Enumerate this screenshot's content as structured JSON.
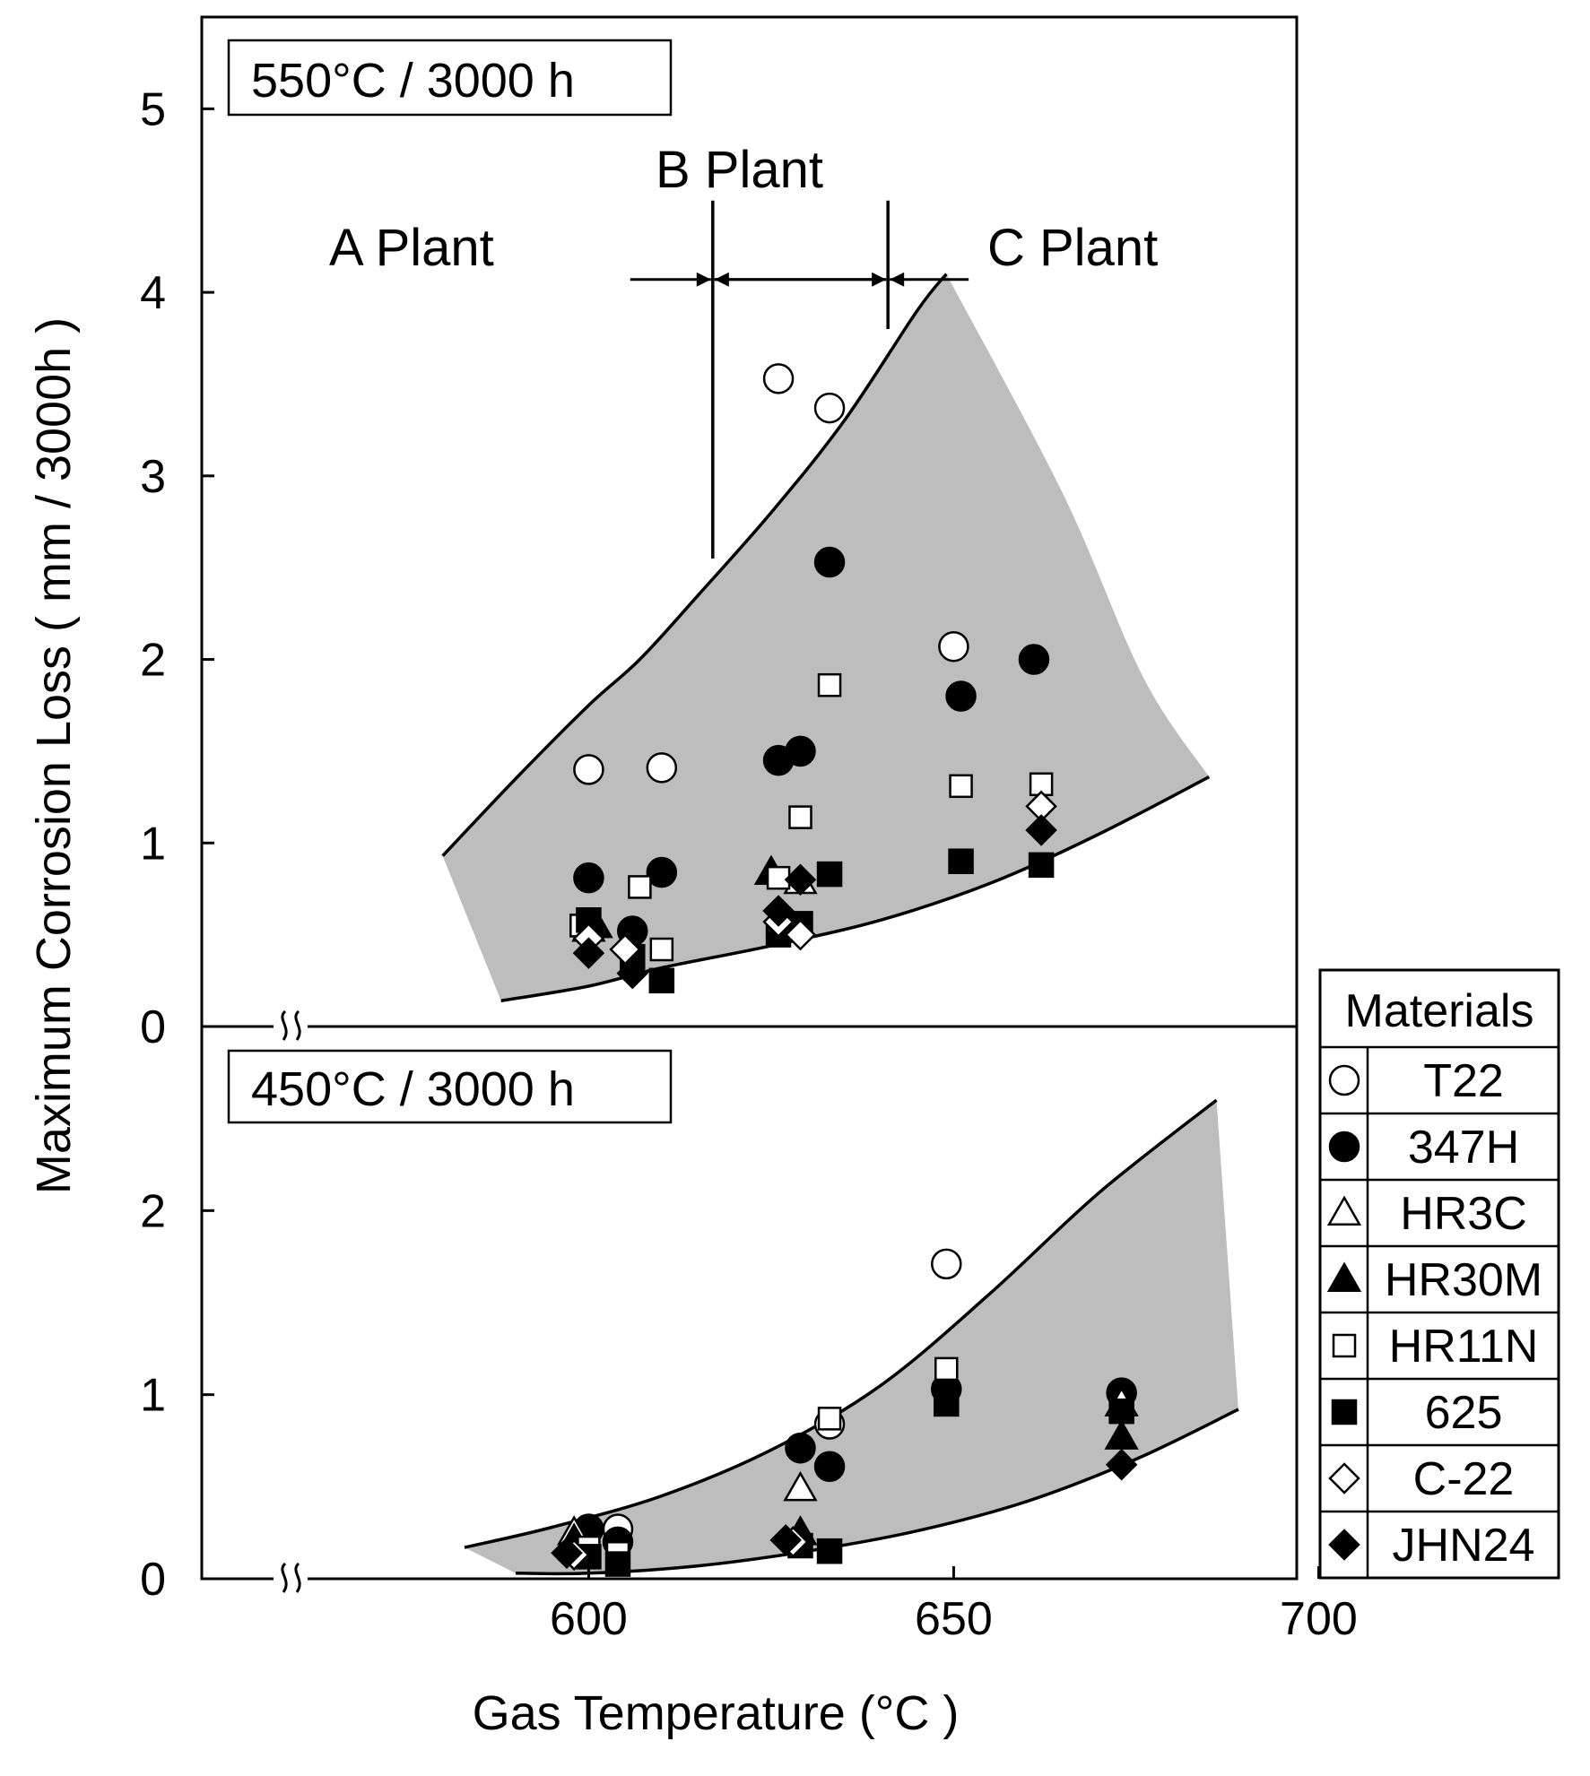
{
  "chart_data": [
    {
      "panel": "upper",
      "type": "scatter",
      "title": "550°C / 3000 h",
      "xlabel": "Gas Temperature (°C )",
      "ylabel": "Maximum Corrosion Loss ( mm / 3000h )",
      "xlim": [
        547,
        697
      ],
      "ylim": [
        0,
        5.5
      ],
      "yticks": [
        0,
        1,
        2,
        3,
        4,
        5
      ],
      "plants": [
        {
          "label": "A Plant"
        },
        {
          "label": "B Plant"
        },
        {
          "label": "C Plant"
        }
      ],
      "plant_boundaries": [
        617,
        641
      ],
      "band": {
        "upper": [
          [
            580,
            0.93
          ],
          [
            590,
            1.35
          ],
          [
            600,
            1.75
          ],
          [
            607,
            2.0
          ],
          [
            615,
            2.35
          ],
          [
            625,
            2.8
          ],
          [
            635,
            3.3
          ],
          [
            645,
            3.9
          ],
          [
            649,
            4.1
          ]
        ],
        "right": [
          [
            649,
            4.1
          ],
          [
            665,
            2.9
          ],
          [
            676,
            1.9
          ],
          [
            685,
            1.36
          ]
        ],
        "lower": [
          [
            685,
            1.36
          ],
          [
            670,
            1.05
          ],
          [
            655,
            0.78
          ],
          [
            640,
            0.58
          ],
          [
            625,
            0.44
          ],
          [
            610,
            0.32
          ],
          [
            600,
            0.22
          ],
          [
            588,
            0.14
          ]
        ],
        "left": [
          [
            588,
            0.14
          ],
          [
            580,
            0.93
          ]
        ]
      },
      "series": [
        {
          "name": "T22",
          "marker": "open-circle",
          "points": [
            [
              600,
              1.4
            ],
            [
              610,
              1.41
            ],
            [
              626,
              3.53
            ],
            [
              633,
              3.37
            ],
            [
              650,
              2.07
            ]
          ]
        },
        {
          "name": "347H",
          "marker": "filled-circle",
          "points": [
            [
              600,
              0.81
            ],
            [
              606,
              0.52
            ],
            [
              610,
              0.84
            ],
            [
              626,
              1.45
            ],
            [
              629,
              1.5
            ],
            [
              633,
              2.53
            ],
            [
              651,
              1.8
            ],
            [
              661,
              2.0
            ]
          ]
        },
        {
          "name": "HR3C",
          "marker": "open-triangle",
          "points": [
            [
              600,
              0.53
            ],
            [
              629,
              0.79
            ]
          ]
        },
        {
          "name": "HR30M",
          "marker": "filled-triangle",
          "points": [
            [
              601,
              0.55
            ],
            [
              625,
              0.84
            ]
          ]
        },
        {
          "name": "HR11N",
          "marker": "open-square",
          "points": [
            [
              599,
              0.55
            ],
            [
              607,
              0.76
            ],
            [
              610,
              0.42
            ],
            [
              626,
              0.81
            ],
            [
              629,
              1.14
            ],
            [
              633,
              1.86
            ],
            [
              651,
              1.31
            ],
            [
              662,
              1.32
            ]
          ]
        },
        {
          "name": "625",
          "marker": "filled-square",
          "points": [
            [
              600,
              0.58
            ],
            [
              606,
              0.38
            ],
            [
              610,
              0.25
            ],
            [
              626,
              0.5
            ],
            [
              629,
              0.56
            ],
            [
              633,
              0.83
            ],
            [
              651,
              0.9
            ],
            [
              662,
              0.88
            ]
          ]
        },
        {
          "name": "C-22",
          "marker": "open-diamond",
          "points": [
            [
              600,
              0.48
            ],
            [
              605,
              0.42
            ],
            [
              626,
              0.57
            ],
            [
              629,
              0.5
            ],
            [
              662,
              1.2
            ]
          ]
        },
        {
          "name": "JHN24",
          "marker": "filled-diamond",
          "points": [
            [
              600,
              0.4
            ],
            [
              606,
              0.29
            ],
            [
              626,
              0.63
            ],
            [
              629,
              0.8
            ],
            [
              662,
              1.07
            ]
          ]
        }
      ]
    },
    {
      "panel": "lower",
      "type": "scatter",
      "title": "450°C / 3000 h",
      "xlabel": "Gas Temperature (°C )",
      "ylabel": "Maximum Corrosion Loss ( mm / 3000h )",
      "xlim": [
        547,
        697
      ],
      "ylim": [
        0,
        3.0
      ],
      "yticks": [
        0,
        1,
        2
      ],
      "xticks": [
        600,
        650,
        700
      ],
      "band": {
        "upper": [
          [
            583,
            0.17
          ],
          [
            595,
            0.28
          ],
          [
            610,
            0.45
          ],
          [
            625,
            0.7
          ],
          [
            640,
            1.05
          ],
          [
            655,
            1.55
          ],
          [
            670,
            2.1
          ],
          [
            686,
            2.6
          ]
        ],
        "right": [
          [
            686,
            2.6
          ],
          [
            689,
            0.92
          ]
        ],
        "lower": [
          [
            689,
            0.92
          ],
          [
            675,
            0.65
          ],
          [
            660,
            0.42
          ],
          [
            645,
            0.26
          ],
          [
            630,
            0.15
          ],
          [
            615,
            0.07
          ],
          [
            600,
            0.03
          ],
          [
            590,
            0.03
          ]
        ],
        "left": [
          [
            590,
            0.03
          ],
          [
            583,
            0.17
          ]
        ]
      },
      "series": [
        {
          "name": "T22",
          "marker": "open-circle",
          "points": [
            [
              604,
              0.27
            ],
            [
              633,
              0.84
            ],
            [
              649,
              1.71
            ]
          ]
        },
        {
          "name": "347H",
          "marker": "filled-circle",
          "points": [
            [
              600,
              0.27
            ],
            [
              604,
              0.2
            ],
            [
              629,
              0.71
            ],
            [
              633,
              0.61
            ],
            [
              649,
              1.03
            ],
            [
              673,
              1.01
            ]
          ]
        },
        {
          "name": "HR3C",
          "marker": "open-triangle",
          "points": [
            [
              598,
              0.25
            ],
            [
              629,
              0.49
            ],
            [
              673,
              0.95
            ]
          ]
        },
        {
          "name": "HR30M",
          "marker": "filled-triangle",
          "points": [
            [
              598,
              0.21
            ],
            [
              629,
              0.25
            ],
            [
              673,
              0.77
            ]
          ]
        },
        {
          "name": "HR11N",
          "marker": "open-square",
          "points": [
            [
              600,
              0.17
            ],
            [
              604,
              0.14
            ],
            [
              633,
              0.87
            ],
            [
              649,
              1.14
            ]
          ]
        },
        {
          "name": "625",
          "marker": "filled-square",
          "points": [
            [
              600,
              0.12
            ],
            [
              604,
              0.08
            ],
            [
              629,
              0.18
            ],
            [
              633,
              0.15
            ],
            [
              649,
              0.95
            ],
            [
              673,
              0.91
            ]
          ]
        },
        {
          "name": "C-22",
          "marker": "open-diamond",
          "points": [
            [
              598,
              0.13
            ],
            [
              628,
              0.2
            ]
          ]
        },
        {
          "name": "JHN24",
          "marker": "filled-diamond",
          "points": [
            [
              597,
              0.14
            ],
            [
              627,
              0.21
            ],
            [
              673,
              0.62
            ]
          ]
        }
      ]
    }
  ],
  "legend": {
    "title": "Materials",
    "items": [
      {
        "name": "T22",
        "marker": "open-circle"
      },
      {
        "name": "347H",
        "marker": "filled-circle"
      },
      {
        "name": "HR3C",
        "marker": "open-triangle"
      },
      {
        "name": "HR30M",
        "marker": "filled-triangle"
      },
      {
        "name": "HR11N",
        "marker": "open-square"
      },
      {
        "name": "625",
        "marker": "filled-square"
      },
      {
        "name": "C-22",
        "marker": "open-diamond"
      },
      {
        "name": "JHN24",
        "marker": "filled-diamond"
      }
    ]
  },
  "colors": {
    "band": "#bdbdbd",
    "ink": "#000000",
    "paper": "#ffffff"
  }
}
